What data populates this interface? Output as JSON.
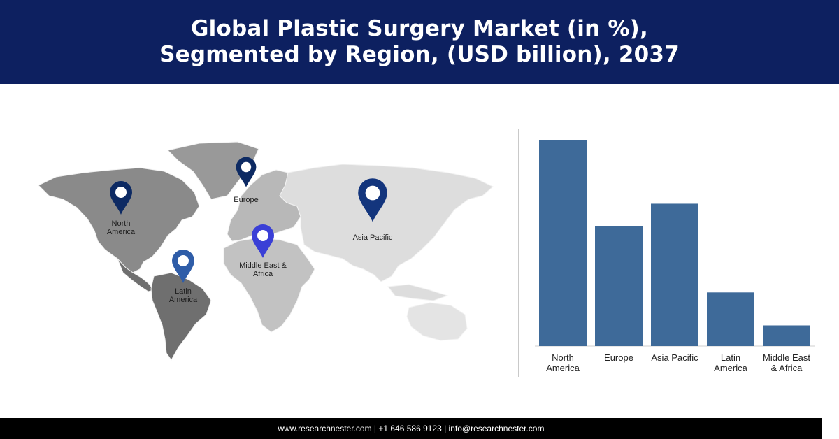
{
  "header": {
    "title_line1": "Global Plastic Surgery Market (in %),",
    "title_line2": "Segmented by Region, (USD billion), 2037"
  },
  "map": {
    "pins": [
      {
        "id": "north-america",
        "label_lines": [
          "North",
          "America"
        ],
        "color": "#0d2a63"
      },
      {
        "id": "europe",
        "label_lines": [
          "Europe"
        ],
        "color": "#0d2a63"
      },
      {
        "id": "asia-pacific",
        "label_lines": [
          "Asia Pacific"
        ],
        "color": "#13357d"
      },
      {
        "id": "middle-east-africa",
        "label_lines": [
          "Middle East &",
          "Africa"
        ],
        "color": "#3a3fd6"
      },
      {
        "id": "latin-america",
        "label_lines": [
          "Latin",
          "America"
        ],
        "color": "#2f5da8"
      }
    ],
    "colors": {
      "north_america": "#8a8a8a",
      "latin_america": "#6f6f6f",
      "europe": "#b8b8b8",
      "africa": "#c2c2c2",
      "asia": "#dddddd",
      "oceania": "#e4e4e4",
      "greenland": "#999999"
    }
  },
  "chart_data": {
    "type": "bar",
    "categories": [
      [
        "North",
        "America"
      ],
      [
        "Europe"
      ],
      [
        "Asia Pacific"
      ],
      [
        "Latin",
        "America"
      ],
      [
        "Middle East",
        "& Africa"
      ]
    ],
    "values": [
      100,
      58,
      69,
      26,
      10
    ],
    "ylim": [
      0,
      100
    ],
    "bar_color": "#3e6a99",
    "title": "",
    "xlabel": "",
    "ylabel": ""
  },
  "footer": {
    "text": "www.researchnester.com | +1 646 586 9123 | info@researchnester.com"
  }
}
